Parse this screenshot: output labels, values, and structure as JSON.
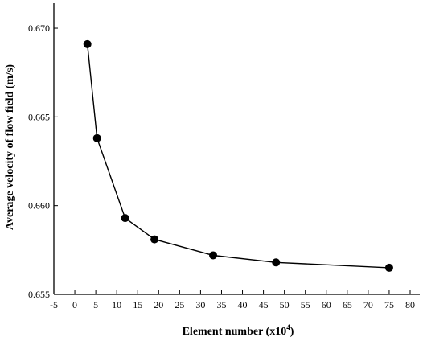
{
  "chart_data": {
    "type": "line",
    "title": "",
    "xlabel": "Element number (x10",
    "xlabel_sup": "4",
    "xlabel_close": ")",
    "ylabel": "Average velocity of flow field (m/s)",
    "xlim": [
      -5,
      80
    ],
    "ylim": [
      0.655,
      0.6705
    ],
    "x_ticks": [
      -5,
      0,
      5,
      10,
      15,
      20,
      25,
      30,
      35,
      40,
      45,
      50,
      55,
      60,
      65,
      70,
      75,
      80
    ],
    "y_ticks": [
      0.655,
      0.66,
      0.665,
      0.67
    ],
    "x_tick_labels": [
      "-5",
      "0",
      "5",
      "10",
      "15",
      "20",
      "25",
      "30",
      "35",
      "40",
      "45",
      "50",
      "55",
      "60",
      "65",
      "70",
      "75",
      "80"
    ],
    "y_tick_labels": [
      "0.655",
      "0.660",
      "0.665",
      "0.670"
    ],
    "grid": false,
    "legend": "none",
    "marker": "filled-circle",
    "color": "#000000",
    "series": [
      {
        "x": [
          3,
          5.3,
          12,
          19,
          33,
          48,
          75
        ],
        "y": [
          0.6691,
          0.6638,
          0.6593,
          0.6581,
          0.6572,
          0.6568,
          0.6565
        ]
      }
    ]
  }
}
